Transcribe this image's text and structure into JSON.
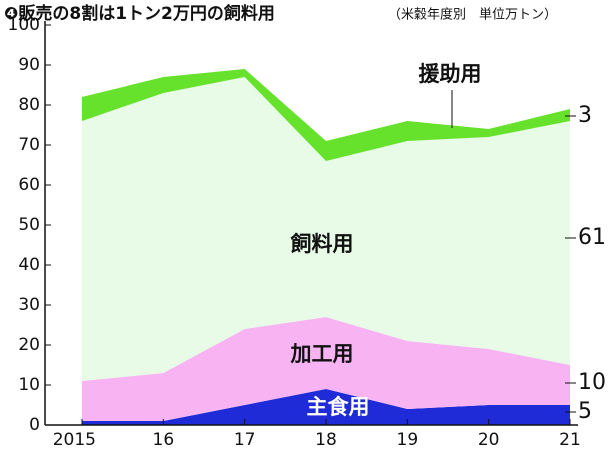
{
  "chart_data": {
    "type": "stacked-area",
    "title": "❹販売の8割は1トン2万円の飼料用",
    "subtitle": "（米穀年度別　単位万トン）",
    "categories": [
      "2015",
      "16",
      "17",
      "18",
      "19",
      "20",
      "21"
    ],
    "series": [
      {
        "name": "主食用",
        "color": "#1f2bd6",
        "values": [
          1,
          1,
          5,
          9,
          4,
          5,
          5
        ]
      },
      {
        "name": "加工用",
        "color": "#f8b4f2",
        "values": [
          10,
          12,
          19,
          18,
          17,
          14,
          10
        ]
      },
      {
        "name": "飼料用",
        "color": "#e7fbe6",
        "values": [
          65,
          70,
          63,
          39,
          50,
          53,
          61
        ]
      },
      {
        "name": "援助用",
        "color": "#66e22c",
        "values": [
          6,
          4,
          2,
          5,
          5,
          2,
          3
        ]
      }
    ],
    "ylim": [
      0,
      100
    ],
    "yticks": [
      0,
      10,
      20,
      30,
      40,
      50,
      60,
      70,
      80,
      90,
      100
    ]
  }
}
